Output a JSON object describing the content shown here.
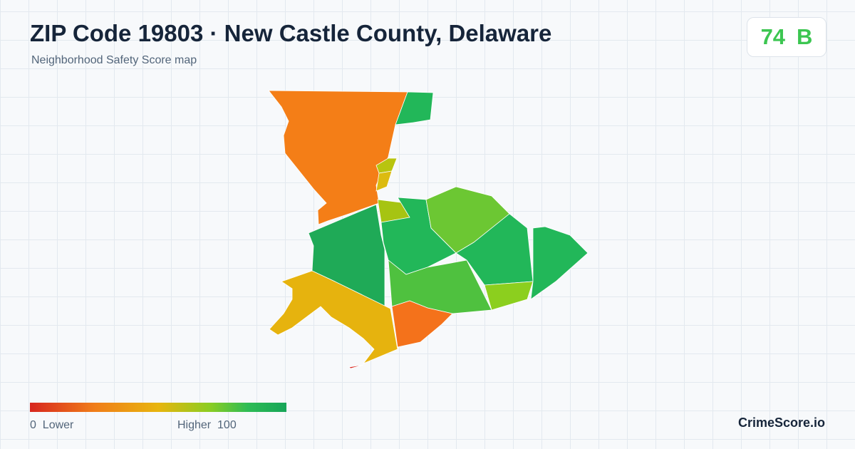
{
  "header": {
    "title": "ZIP Code 19803 · New Castle County, Delaware",
    "subtitle": "Neighborhood Safety Score map"
  },
  "score": {
    "value": 74,
    "grade": "B"
  },
  "legend": {
    "min": 0,
    "min_label": "Lower",
    "max_label": "Higher",
    "max": 100
  },
  "brand": "CrimeScore.io"
}
